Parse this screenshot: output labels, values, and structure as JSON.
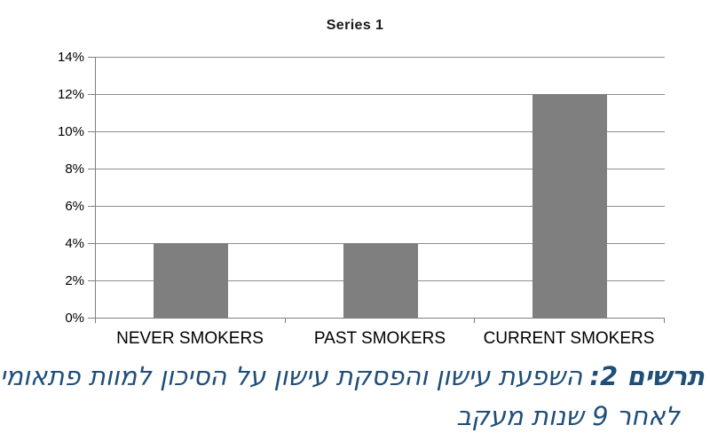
{
  "chart_data": {
    "type": "bar",
    "title": "Series 1",
    "categories": [
      "NEVER SMOKERS",
      "PAST SMOKERS",
      "CURRENT SMOKERS"
    ],
    "values": [
      4,
      4,
      12
    ],
    "value_unit": "%",
    "y_tick_labels": [
      "14%",
      "12%",
      "10%",
      "8%",
      "6%",
      "4%",
      "2%",
      "0%"
    ],
    "ylim": [
      0,
      14
    ],
    "grid": true,
    "legend_position": "none",
    "bar_color": "#7f7f7f",
    "gridline_color": "#8e8e8e",
    "axis_color": "#7f7f7f"
  },
  "caption": {
    "prefix_bold": "תרשים 2:",
    "line1_rest": "השפעת עישון והפסקת עישון על הסיכון למוות פתאומי",
    "line2": "לאחר 9 שנות מעקב",
    "text_color": "#1F4E79"
  }
}
